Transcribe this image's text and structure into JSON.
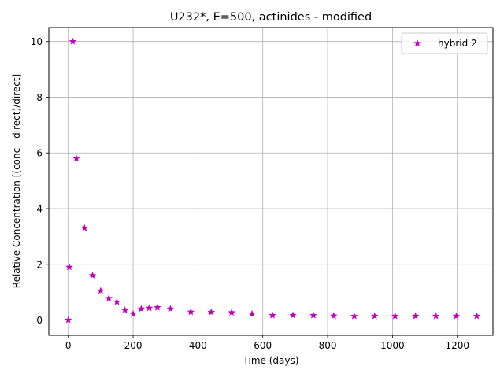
{
  "chart_data": {
    "type": "scatter",
    "title": "U232*, E=500, actinides - modified",
    "xlabel": "Time (days)",
    "ylabel": "Relative Concentration [(conc - direct)/direct]",
    "xlim": [
      -60,
      1310
    ],
    "ylim": [
      -0.55,
      10.5
    ],
    "xticks": [
      0,
      200,
      400,
      600,
      800,
      1000,
      1200
    ],
    "yticks": [
      0,
      2,
      4,
      6,
      8,
      10
    ],
    "grid": true,
    "legend_position": "top-right",
    "series": [
      {
        "name": "hybrid 2",
        "color": "#bf00bf",
        "marker": "star",
        "x": [
          0,
          3,
          14,
          25,
          50,
          75,
          100,
          125,
          150,
          175,
          200,
          225,
          250,
          275,
          315,
          378,
          441,
          504,
          567,
          630,
          693,
          756,
          819,
          882,
          945,
          1008,
          1071,
          1134,
          1197,
          1260
        ],
        "y": [
          0.0,
          1.9,
          10.0,
          5.8,
          3.3,
          1.6,
          1.05,
          0.78,
          0.65,
          0.35,
          0.22,
          0.4,
          0.43,
          0.45,
          0.4,
          0.29,
          0.28,
          0.27,
          0.22,
          0.17,
          0.17,
          0.17,
          0.15,
          0.14,
          0.14,
          0.14,
          0.14,
          0.14,
          0.14,
          0.14
        ]
      }
    ]
  }
}
